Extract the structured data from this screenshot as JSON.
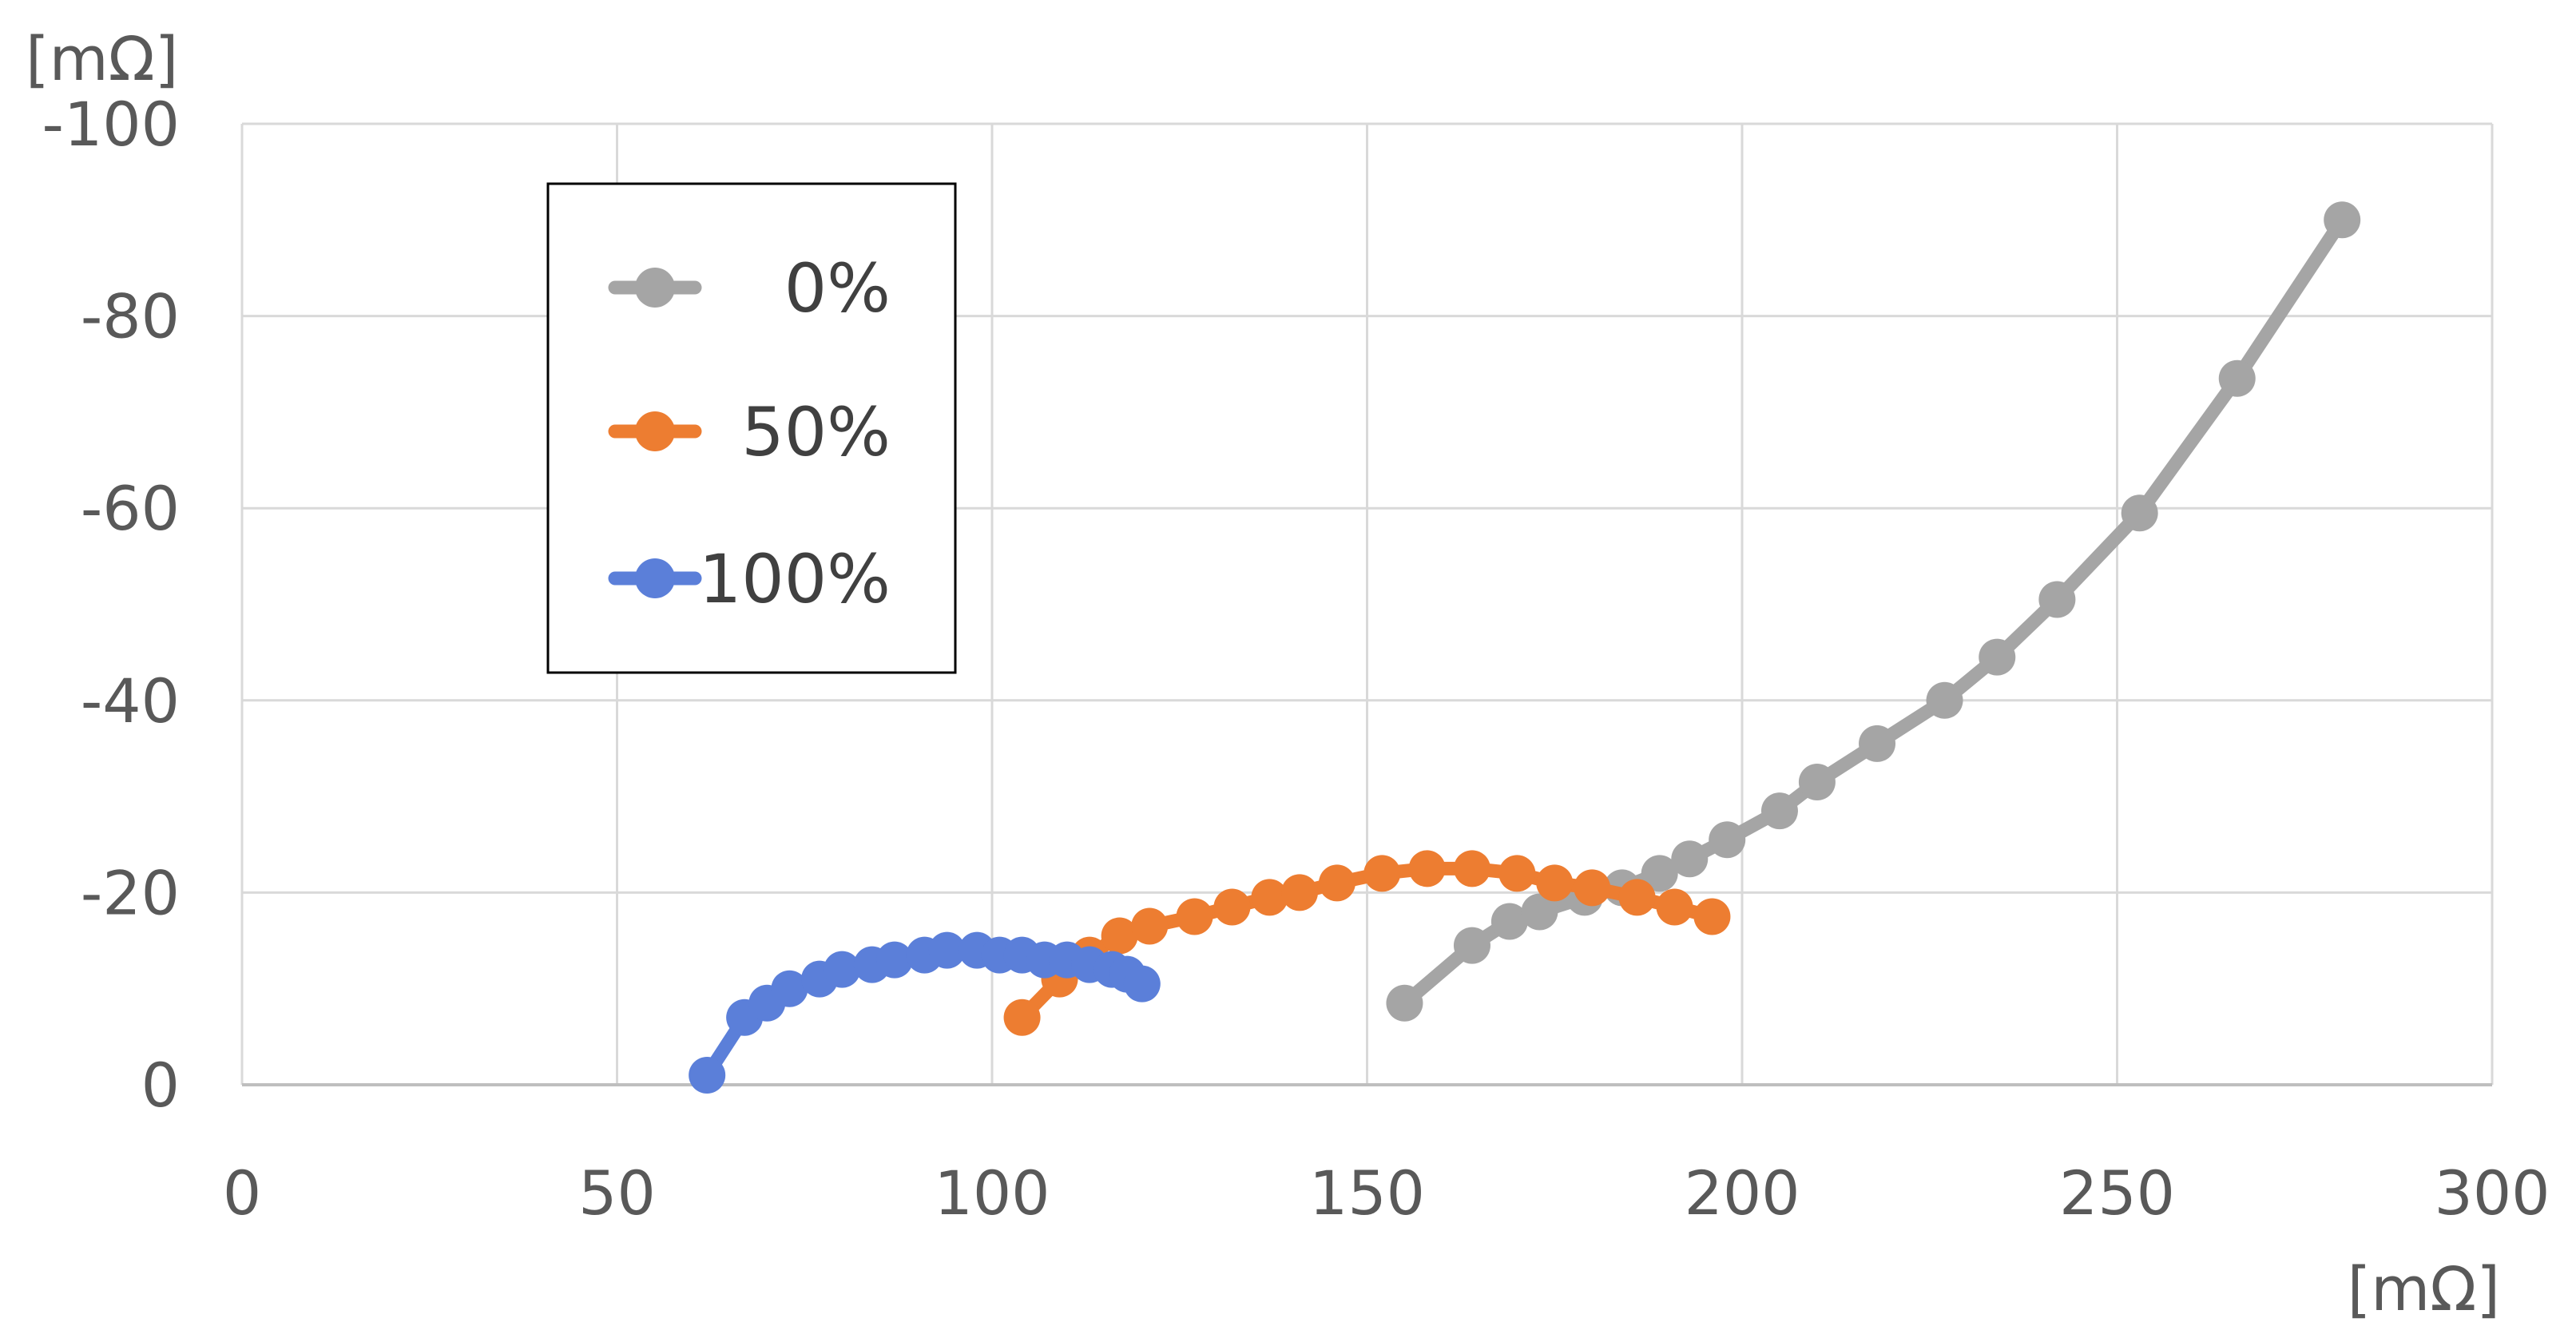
{
  "chart_data": {
    "type": "scatter",
    "xlabel": "[mΩ]",
    "ylabel": "[mΩ]",
    "xlim": [
      0,
      300
    ],
    "ylim": [
      0,
      -100
    ],
    "y_axis_reversed": true,
    "x_ticks": [
      "0",
      "50",
      "100",
      "150",
      "200",
      "250",
      "300"
    ],
    "y_ticks": [
      "0",
      "-20",
      "-40",
      "-60",
      "-80",
      "-100"
    ],
    "grid": true,
    "legend_position": "top-left",
    "series": [
      {
        "name": "0%",
        "color": "#A5A5A5",
        "points": [
          [
            155,
            -8.5
          ],
          [
            164,
            -14.5
          ],
          [
            169,
            -17
          ],
          [
            173,
            -18
          ],
          [
            179,
            -19.5
          ],
          [
            184,
            -20.5
          ],
          [
            189,
            -22
          ],
          [
            193,
            -23.5
          ],
          [
            198,
            -25.5
          ],
          [
            205,
            -28.5
          ],
          [
            210,
            -31.5
          ],
          [
            218,
            -35.5
          ],
          [
            227,
            -40
          ],
          [
            234,
            -44.5
          ],
          [
            242,
            -50.5
          ],
          [
            253,
            -59.5
          ],
          [
            266,
            -73.5
          ],
          [
            280,
            -90
          ]
        ]
      },
      {
        "name": "50%",
        "color": "#ED7D31",
        "points": [
          [
            104,
            -7
          ],
          [
            109,
            -11
          ],
          [
            113,
            -13.5
          ],
          [
            117,
            -15.5
          ],
          [
            121,
            -16.5
          ],
          [
            127,
            -17.5
          ],
          [
            132,
            -18.5
          ],
          [
            137,
            -19.5
          ],
          [
            141,
            -20
          ],
          [
            146,
            -21
          ],
          [
            152,
            -22
          ],
          [
            158,
            -22.5
          ],
          [
            164,
            -22.5
          ],
          [
            170,
            -22
          ],
          [
            175,
            -21
          ],
          [
            180,
            -20.5
          ],
          [
            186,
            -19.5
          ],
          [
            191,
            -18.5
          ],
          [
            196,
            -17.5
          ]
        ]
      },
      {
        "name": "100%",
        "color": "#5B7FD9",
        "points": [
          [
            62,
            -1
          ],
          [
            67,
            -7
          ],
          [
            70,
            -8.5
          ],
          [
            73,
            -10
          ],
          [
            77,
            -11
          ],
          [
            80,
            -12
          ],
          [
            84,
            -12.5
          ],
          [
            87,
            -13
          ],
          [
            91,
            -13.5
          ],
          [
            94,
            -14
          ],
          [
            98,
            -14
          ],
          [
            101,
            -13.5
          ],
          [
            104,
            -13.5
          ],
          [
            107,
            -13
          ],
          [
            110,
            -13
          ],
          [
            113,
            -12.5
          ],
          [
            116,
            -12
          ],
          [
            118,
            -11.5
          ],
          [
            120,
            -10.5
          ]
        ]
      }
    ]
  }
}
